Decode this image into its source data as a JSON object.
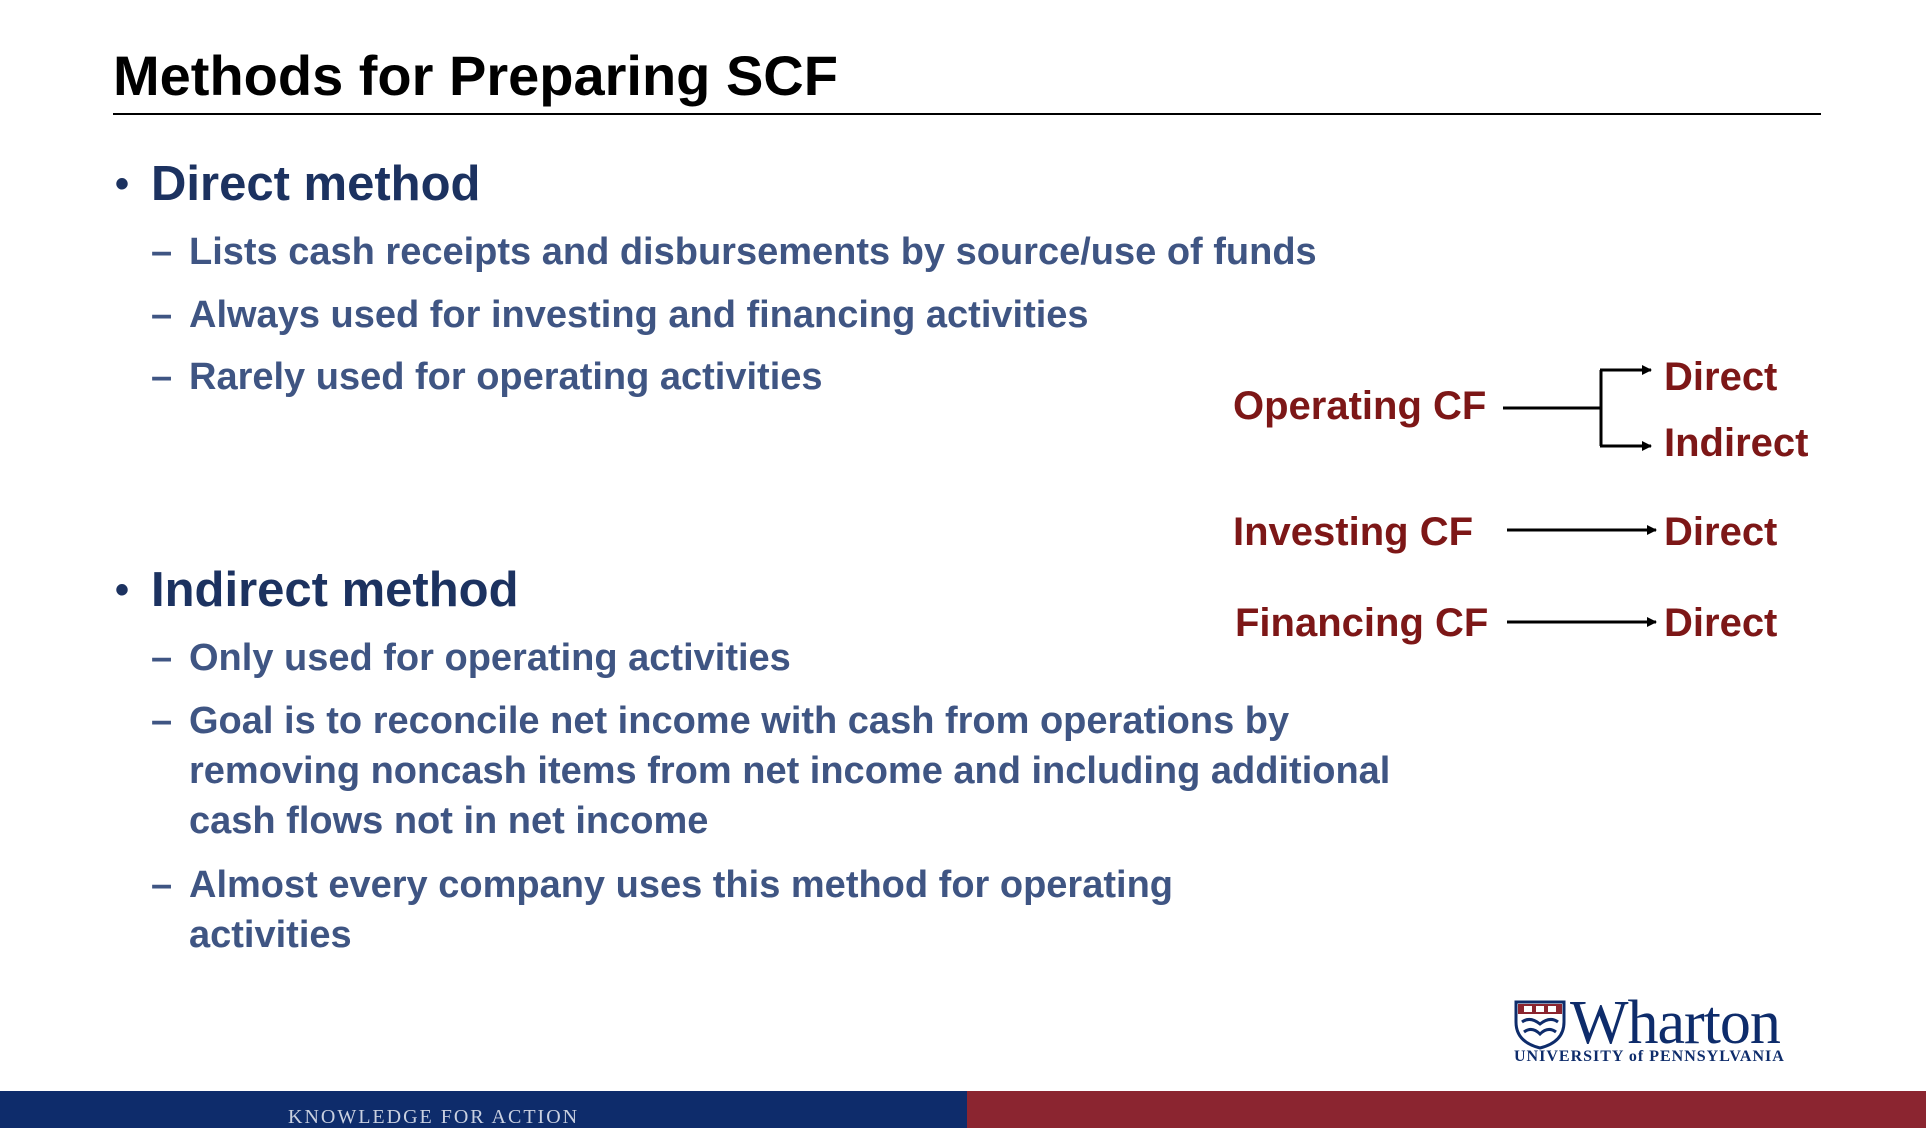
{
  "slide": {
    "title": "Methods for Preparing SCF",
    "bullet_char": "•",
    "dash_char": "–",
    "sections": [
      {
        "heading": "Direct method",
        "items": [
          "Lists cash receipts and disbursements by source/use of funds",
          "Always used for investing and financing activities",
          "Rarely used for operating activities"
        ]
      },
      {
        "heading": "Indirect method",
        "items": [
          "Only used for operating activities",
          "Goal is to reconcile net income with cash from operations by removing noncash items from net income and including additional cash flows not in net income",
          "Almost every company uses this method for operating activities"
        ]
      }
    ]
  },
  "diagram": {
    "operating": {
      "label": "Operating CF",
      "targets": [
        "Direct",
        "Indirect"
      ]
    },
    "investing": {
      "label": "Investing CF",
      "target": "Direct"
    },
    "financing": {
      "label": "Financing CF",
      "target": "Direct"
    },
    "text_color": "#7d1717"
  },
  "footer": {
    "tagline": "KNOWLEDGE FOR ACTION",
    "logo_word": "Wharton",
    "logo_sub": "UNIVERSITY of PENNSYLVANIA",
    "left_color": "#0e2c6b",
    "right_color": "#8b2530"
  },
  "colors": {
    "heading": "#1c3260",
    "subitem": "#3f5583"
  }
}
